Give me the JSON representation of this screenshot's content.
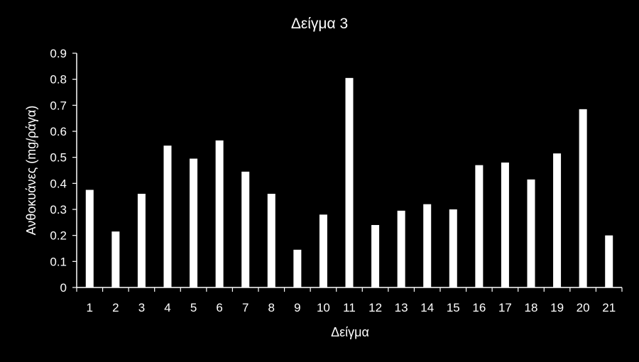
{
  "chart_data": {
    "type": "bar",
    "title": "Δείγμα 3",
    "xlabel": "Δείγμα",
    "ylabel": "Ανθοκυάνες (mg/ράγα)",
    "categories": [
      "1",
      "2",
      "3",
      "4",
      "5",
      "6",
      "7",
      "8",
      "9",
      "10",
      "11",
      "12",
      "13",
      "14",
      "15",
      "16",
      "17",
      "18",
      "19",
      "20",
      "21"
    ],
    "values": [
      0.375,
      0.215,
      0.36,
      0.545,
      0.495,
      0.565,
      0.445,
      0.36,
      0.145,
      0.28,
      0.805,
      0.24,
      0.295,
      0.32,
      0.3,
      0.47,
      0.48,
      0.415,
      0.515,
      0.685,
      0.2
    ],
    "ylim": [
      0,
      0.9
    ],
    "yticks": [
      "0",
      "0.1",
      "0.2",
      "0.3",
      "0.4",
      "0.5",
      "0.6",
      "0.7",
      "0.8",
      "0.9"
    ],
    "grid": false,
    "legend": "none",
    "colors": {
      "background": "#000000",
      "bar": "#ffffff",
      "axis": "#ffffff",
      "text": "#ffffff"
    }
  }
}
